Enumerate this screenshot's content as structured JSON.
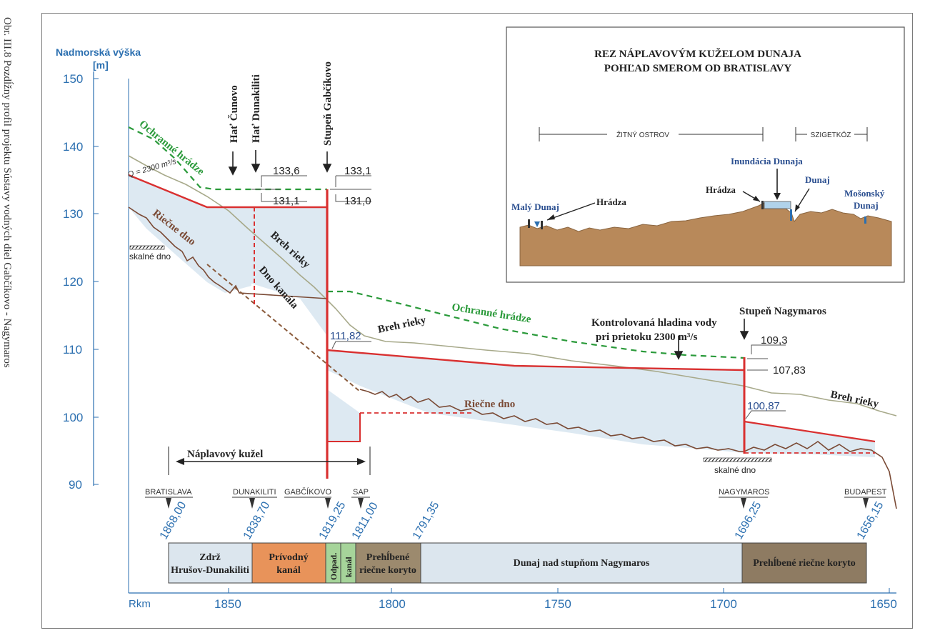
{
  "caption": "Obr. III.8 Pozdĺžny profil projektu Sústavy vodných diel Gabčíkovo - Nagymaros",
  "colors": {
    "accent_blue": "#2b6fb0",
    "water_red": "#d93030",
    "dike_green": "#2a9a3a",
    "bed_brown": "#7a4a35",
    "bank_olive": "#a7a98a",
    "water_fill": "#dde9f2",
    "soil": "#b8895a"
  },
  "y_axis": {
    "title_line1": "Nadmorská výška",
    "title_line2": "[m]",
    "ticks": [
      "150",
      "140",
      "130",
      "120",
      "110",
      "100",
      "90"
    ]
  },
  "x_axis": {
    "title": "Rkm",
    "ticks": [
      "1850",
      "1800",
      "1750",
      "1700",
      "1650"
    ]
  },
  "labels": {
    "ochranne_hradze_1": "Ochranné hrádze",
    "ochranne_hradze_2": "Ochranné hrádze",
    "flow": "Q = 2300 m³/s",
    "riecne_dno_1": "Riečne dno",
    "riecne_dno_2": "Riečne dno",
    "skalne_dno_1": "skalné dno",
    "skalne_dno_2": "skalné dno",
    "breh_rieky_1": "Breh rieky",
    "breh_rieky_2": "Breh rieky",
    "breh_rieky_3": "Breh rieky",
    "dno_kanala": "Dno kanála",
    "hat_cunovo": "Hať Čunovo",
    "hat_dunakiliti": "Hať Dunakiliti",
    "stupen_gabcikovo": "Stupeň Gabčíkovo",
    "stupen_nagymaros": "Stupeň Nagymaros",
    "kontrolovana_1": "Kontrolovaná hladina vody",
    "kontrolovana_2": "pri prietoku 2300 m³/s",
    "naplavovy_kuzel": "Náplavový kužel"
  },
  "levels": [
    "133,6",
    "131,1",
    "133,1",
    "131,0",
    "111,82",
    "109,3",
    "107,83",
    "100,87"
  ],
  "stations": [
    {
      "name": "BRATISLAVA",
      "rkm": "1868,00"
    },
    {
      "name": "DUNAKILITI",
      "rkm": "1838,70"
    },
    {
      "name": "GABČÍKOVO",
      "rkm": "1819,25"
    },
    {
      "name": "SAP",
      "rkm": "1811,00"
    },
    {
      "name": "",
      "rkm": "1791,35"
    },
    {
      "name": "NAGYMAROS",
      "rkm": "1696,25"
    },
    {
      "name": "BUDAPEST",
      "rkm": "1656,15"
    }
  ],
  "segments": [
    {
      "line1": "Zdrž",
      "line2": "Hrušov-Dunakiliti"
    },
    {
      "line1": "Prívodný",
      "line2": "kanál"
    },
    {
      "line1": "Odpad.",
      "line2": "kanál"
    },
    {
      "line1": "Prehĺbené",
      "line2": "riečne koryto"
    },
    {
      "line1": "Dunaj nad stupňom Nagymaros",
      "line2": ""
    },
    {
      "line1": "Prehĺbené riečne koryto",
      "line2": ""
    }
  ],
  "inset": {
    "title_line1": "REZ NÁPLAVOVÝM KUŽELOM DUNAJA",
    "title_line2": "POHĽAD SMEROM OD BRATISLAVY",
    "zitny_ostrov": "ŽITNÝ OSTROV",
    "szigetkoz": "SZIGETKÖZ",
    "maly_dunaj": "Malý Dunaj",
    "hradza_1": "Hrádza",
    "hradza_2": "Hrádza",
    "inundacia": "Inundácia Dunaja",
    "dunaj": "Dunaj",
    "mosonsky_1": "Mošonský",
    "mosonsky_2": "Dunaj"
  }
}
